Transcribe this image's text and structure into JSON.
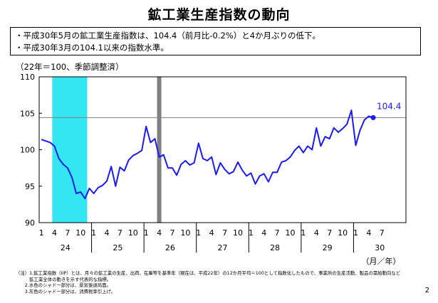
{
  "page": {
    "title": "鉱工業生産指数の動向",
    "summary": [
      "・平成30年5月の鉱工業生産指数は、104.4（前月比-0.2%）と4か月ぶりの低下。",
      "・平成30年3月の104.1以来の指数水準。"
    ],
    "unit_label": "（22年＝100、季節調整済）",
    "notes": [
      "（注）1.鉱工業指数（IIP）とは、月々の鉱工業の生産、出荷、在庫等を基準年（現在は、平成22年）の12か月平均＝100として指数化したもので、事業所の生産活動、製品の需給動向など",
      "　　　鉱工業全体の動きを示す代表的な指標。",
      "　　2.水色のシャドー部分は、景気後退局面。",
      "　　3.灰色のシャドー部分は、消費税率引上げ。"
    ],
    "page_number": "2"
  },
  "chart_data": {
    "type": "line",
    "title": "",
    "xlabel": "（月／年）",
    "ylabel": "",
    "ylim": [
      90,
      110
    ],
    "yticks": [
      90,
      95,
      100,
      105,
      110
    ],
    "years": [
      "24",
      "25",
      "26",
      "27",
      "28",
      "29",
      "30"
    ],
    "month_ticks": [
      "1",
      "4",
      "7",
      "10"
    ],
    "x_start": "2012-01",
    "series": [
      {
        "name": "",
        "color": "#1a1aff",
        "values": [
          101.4,
          101.2,
          101.0,
          100.5,
          98.8,
          98.0,
          97.5,
          96.2,
          94.0,
          94.2,
          93.3,
          94.7,
          94.0,
          94.8,
          95.1,
          95.7,
          97.7,
          95.0,
          97.6,
          97.1,
          98.6,
          99.2,
          99.5,
          99.9,
          103.2,
          101.0,
          101.5,
          99.0,
          99.3,
          97.5,
          97.5,
          96.5,
          98.0,
          98.5,
          97.9,
          98.2,
          100.9,
          98.8,
          98.5,
          99.0,
          96.6,
          98.2,
          97.3,
          96.7,
          97.0,
          98.3,
          97.2,
          96.4,
          96.8,
          95.3,
          96.4,
          96.7,
          95.6,
          96.9,
          96.9,
          98.3,
          98.5,
          99.0,
          99.9,
          100.5,
          99.6,
          100.5,
          100.0,
          103.0,
          100.5,
          101.8,
          101.5,
          103.0,
          102.4,
          102.9,
          103.5,
          105.4,
          100.6,
          102.7,
          104.1,
          104.6,
          104.4
        ]
      }
    ],
    "annotation": {
      "label": "104.4",
      "index": 76,
      "value": 104.4,
      "color": "#1a1aff"
    },
    "reference_line": {
      "value": 104.4,
      "color": "#808080"
    },
    "recession_shade": {
      "from": "2012-04",
      "to": "2012-11",
      "color": "#33e6f2"
    },
    "tax_shade": {
      "at": "2014-04",
      "color": "#808080"
    }
  }
}
